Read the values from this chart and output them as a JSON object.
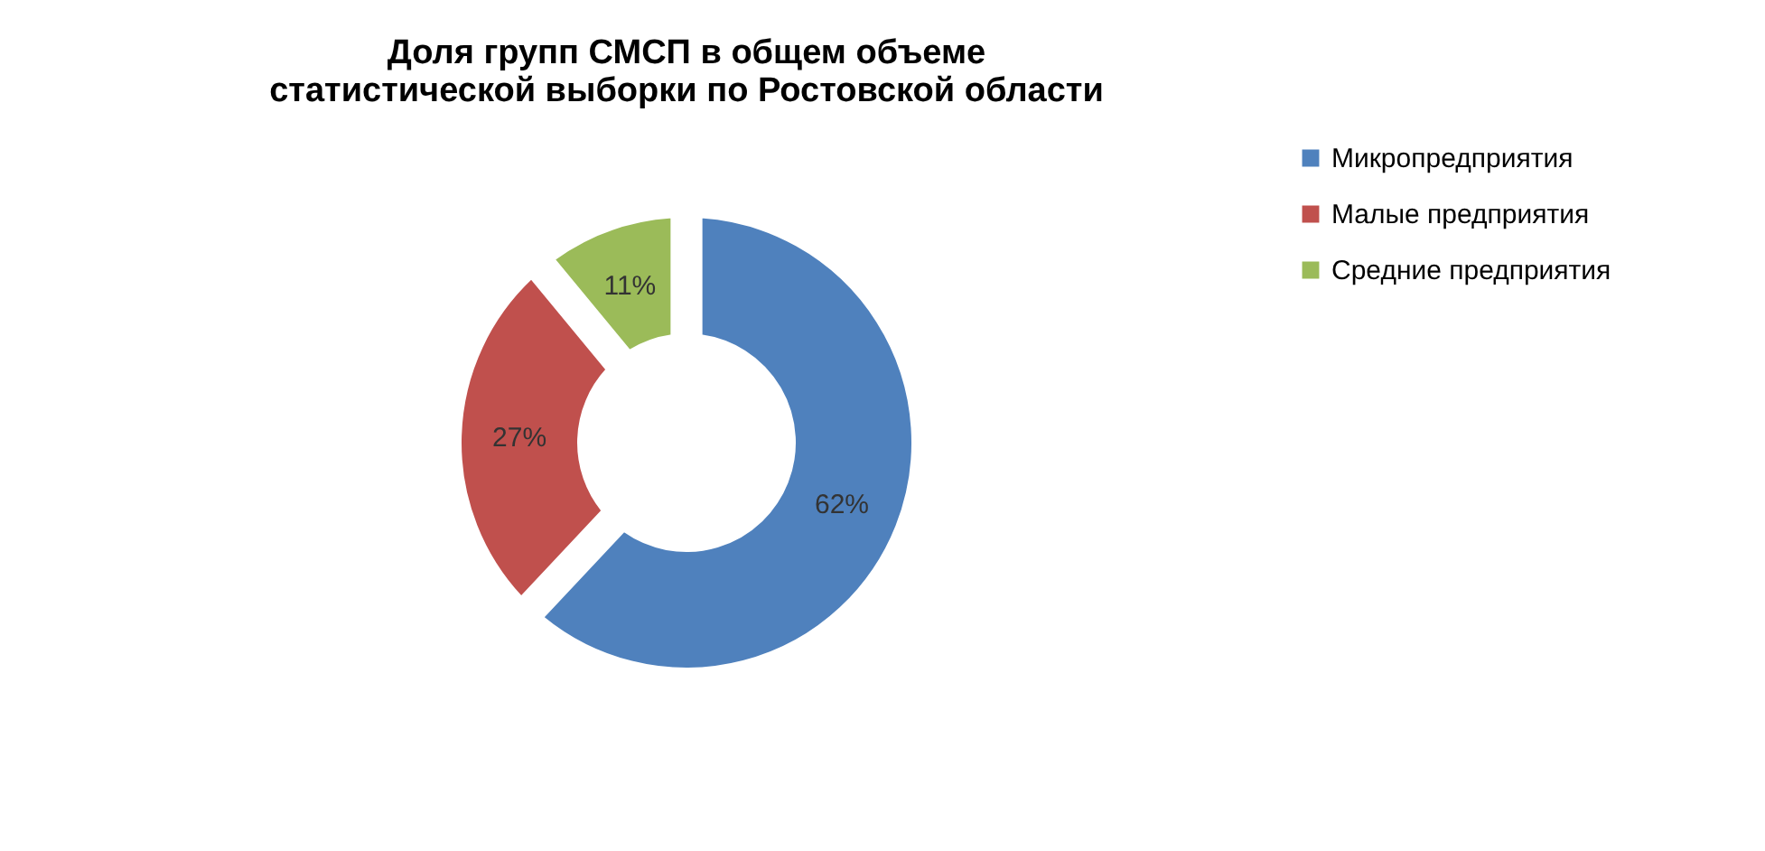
{
  "chart_data": {
    "type": "donut",
    "title": "Доля групп СМСП в общем объеме\nстатистической выборки по Ростовской области",
    "categories": [
      "Микропредприятия",
      "Малые предприятия",
      "Средние предприятия"
    ],
    "values": [
      62,
      27,
      11
    ],
    "colors": [
      "#4f81bd",
      "#c0504d",
      "#9bbb59"
    ],
    "value_labels": [
      "62%",
      "27%",
      "11%"
    ],
    "legend": "right"
  }
}
